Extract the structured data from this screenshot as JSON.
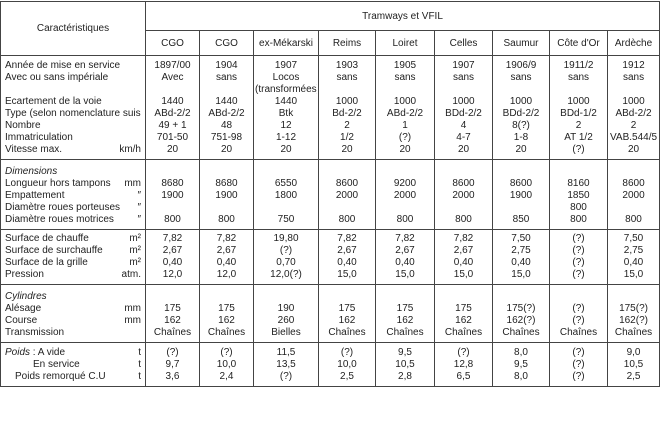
{
  "header": {
    "title": "Caractéristiques",
    "group": "Tramways et VFIL",
    "columns": [
      "CGO",
      "CGO",
      "ex-Mékarski",
      "Reims",
      "Loiret",
      "Celles",
      "Saumur",
      "Côte d'Or",
      "Ardèche"
    ]
  },
  "sections": [
    {
      "rows": [
        {
          "label": "Année de mise en service",
          "values": [
            "1897/00",
            "1904",
            "1907",
            "1903",
            "1905",
            "1907",
            "1906/9",
            "1911/2",
            "1912"
          ]
        },
        {
          "label": "Avec ou sans impériale",
          "values": [
            "Avec",
            "sans",
            "Locos",
            "sans",
            "sans",
            "sans",
            "sans",
            "sans",
            "sans"
          ]
        },
        {
          "label": null,
          "values": [
            null,
            null,
            "(transformées)",
            null,
            null,
            null,
            null,
            null,
            null
          ]
        },
        {
          "label": "Ecartement de la voie",
          "values": [
            "1440",
            "1440",
            "1440",
            "1000",
            "1000",
            "1000",
            "1000",
            "1000",
            "1000"
          ]
        },
        {
          "label": "Type (selon nomenclature suisse)",
          "values": [
            "ABd-2/2",
            "ABd-2/2",
            "Btk",
            "Bd-2/2",
            "ABd-2/2",
            "BDd-2/2",
            "BDd-2/2",
            "BDd-1/2",
            "ABd-2/2"
          ]
        },
        {
          "label": "Nombre",
          "values": [
            "49 + 1",
            "48",
            "12",
            "2",
            "1",
            "4",
            "8(?)",
            "2",
            "2"
          ]
        },
        {
          "label": "Immatriculation",
          "values": [
            "701-50",
            "751-98",
            "1-12",
            "1/2",
            "(?)",
            "4-7",
            "1-8",
            "AT 1/2",
            "VAB.544/5"
          ]
        },
        {
          "label": "Vitesse max.",
          "unit": "km/h",
          "values": [
            "20",
            "20",
            "20",
            "20",
            "20",
            "20",
            "20",
            "(?)",
            "20"
          ]
        }
      ]
    },
    {
      "title": "Dimensions",
      "rows": [
        {
          "label": "Longueur hors tampons",
          "unit": "mm",
          "values": [
            "8680",
            "8680",
            "6550",
            "8600",
            "9200",
            "8600",
            "8600",
            "8160",
            "8600"
          ]
        },
        {
          "label": "Empattement",
          "unit": "″",
          "values": [
            "1900",
            "1900",
            "1800",
            "2000",
            "2000",
            "2000",
            "1900",
            "1850",
            "2000"
          ]
        },
        {
          "label": "Diamètre roues porteuses",
          "unit": "″",
          "values": [
            null,
            null,
            null,
            null,
            null,
            null,
            null,
            "800",
            null
          ]
        },
        {
          "label": "Diamètre roues motrices",
          "unit": "″",
          "values": [
            "800",
            "800",
            "750",
            "800",
            "800",
            "800",
            "850",
            "800",
            "800"
          ]
        }
      ]
    },
    {
      "rows": [
        {
          "label": "Surface de chauffe",
          "unit": "m²",
          "values": [
            "7,82",
            "7,82",
            "19,80",
            "7,82",
            "7,82",
            "7,82",
            "7,50",
            "(?)",
            "7,50"
          ]
        },
        {
          "label": "Surface de surchauffe",
          "unit": "m²",
          "values": [
            "2,67",
            "2,67",
            "(?)",
            "2,67",
            "2,67",
            "2,67",
            "2,75",
            "(?)",
            "2,75"
          ]
        },
        {
          "label": "Surface de la grille",
          "unit": "m²",
          "values": [
            "0,40",
            "0,40",
            "0,70",
            "0,40",
            "0,40",
            "0,40",
            "0,40",
            "(?)",
            "0,40"
          ]
        },
        {
          "label": "Pression",
          "unit": "atm.",
          "values": [
            "12,0",
            "12,0",
            "12,0(?)",
            "15,0",
            "15,0",
            "15,0",
            "15,0",
            "(?)",
            "15,0"
          ]
        }
      ]
    },
    {
      "title": "Cylindres",
      "rows": [
        {
          "label": "Alésage",
          "unit": "mm",
          "values": [
            "175",
            "175",
            "190",
            "175",
            "175",
            "175",
            "175(?)",
            "(?)",
            "175(?)"
          ]
        },
        {
          "label": "Course",
          "unit": "mm",
          "values": [
            "162",
            "162",
            "260",
            "162",
            "162",
            "162",
            "162(?)",
            "(?)",
            "162(?)"
          ]
        },
        {
          "label": "Transmission",
          "values": [
            "Chaînes",
            "Chaînes",
            "Bielles",
            "Chaînes",
            "Chaînes",
            "Chaînes",
            "Chaînes",
            "Chaînes",
            "Chaînes"
          ]
        }
      ]
    },
    {
      "inline_title": "Poids",
      "rows": [
        {
          "label": ": A vide",
          "unit": "t",
          "values": [
            "(?)",
            "(?)",
            "11,5",
            "(?)",
            "9,5",
            "(?)",
            "8,0",
            "(?)",
            "9,0"
          ]
        },
        {
          "label": "En service",
          "unit": "t",
          "values": [
            "9,7",
            "10,0",
            "13,5",
            "10,0",
            "10,5",
            "12,8",
            "9,5",
            "(?)",
            "10,5"
          ]
        },
        {
          "label": "Poids remorqué C.U",
          "unit": "t",
          "values": [
            "3,6",
            "2,4",
            "(?)",
            "2,5",
            "2,8",
            "6,5",
            "8,0",
            "(?)",
            "2,5"
          ]
        }
      ]
    }
  ]
}
